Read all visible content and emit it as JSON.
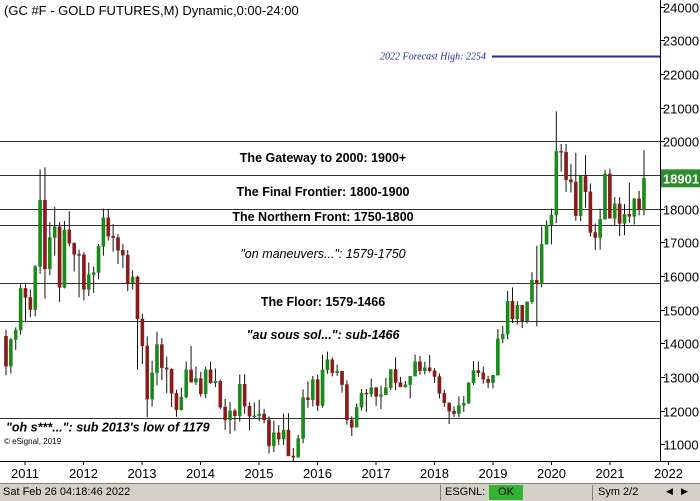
{
  "title": "(GC #F - GOLD FUTURES,M) Dynamic,0:00-24:00",
  "copyright": "© eSignal, 2019",
  "status": {
    "timestamp": "Sat Feb 26 04:18:46 2022",
    "feed": "ESGNL:",
    "feed_status": "OK",
    "symbol": "Sym 2/2"
  },
  "colors": {
    "up": "#1a8a1a",
    "down": "#8b1a1a",
    "forecast": "#1a2aa0",
    "last_price_bg": "#2e8b2e"
  },
  "chart_data": {
    "type": "candlestick",
    "title": "(GC #F - GOLD FUTURES,M) Dynamic,0:00-24:00",
    "interval": "monthly",
    "ylim": [
      10500,
      24200
    ],
    "y_ticks": [
      11000,
      12000,
      13000,
      14000,
      15000,
      16000,
      17000,
      18000,
      19000,
      20000,
      21000,
      22000,
      23000,
      24000
    ],
    "x_ticks": [
      "2011",
      "2012",
      "2013",
      "2014",
      "2015",
      "2016",
      "2017",
      "2018",
      "2019",
      "2020",
      "2021",
      "2022"
    ],
    "last_price": "18901",
    "levels": [
      {
        "value": 20000,
        "label": "The Gateway to 2000:  1900+",
        "label_value": 19500,
        "label_style": "bold"
      },
      {
        "value": 19000,
        "label": "The Final Frontier:  1800-1900",
        "label_value": 18500,
        "label_style": "bold"
      },
      {
        "value": 18000,
        "label": "The Northern Front:  1750-1800",
        "label_value": 17750,
        "label_style": "bold"
      },
      {
        "value": 17500,
        "label": "\"on maneuvers...\":  1579-1750",
        "label_value": 16650,
        "label_style": "italic"
      },
      {
        "value": 15790,
        "label": "The Floor:  1579-1466",
        "label_value": 15230,
        "label_style": "bold"
      },
      {
        "value": 14660,
        "label": "\"au sous sol...\":  sub-1466",
        "label_value": 14250,
        "label_style": "bolditalic"
      },
      {
        "value": 11790,
        "label": "\"oh s***...\": sub 2013's low of 1179",
        "label_value": 11500,
        "label_style": "bolditalic"
      }
    ],
    "forecast": {
      "value": 22540,
      "label": "2022 Forecast High:  2254"
    },
    "candles": [
      [
        1421,
        1440,
        1305,
        1332
      ],
      [
        1332,
        1415,
        1310,
        1411
      ],
      [
        1411,
        1447,
        1380,
        1439
      ],
      [
        1439,
        1575,
        1425,
        1563
      ],
      [
        1563,
        1575,
        1462,
        1536
      ],
      [
        1536,
        1560,
        1478,
        1500
      ],
      [
        1500,
        1632,
        1480,
        1628
      ],
      [
        1628,
        1917,
        1606,
        1825
      ],
      [
        1825,
        1923,
        1532,
        1621
      ],
      [
        1621,
        1760,
        1602,
        1714
      ],
      [
        1714,
        1805,
        1660,
        1746
      ],
      [
        1746,
        1760,
        1523,
        1566
      ],
      [
        1566,
        1763,
        1563,
        1737
      ],
      [
        1737,
        1792,
        1688,
        1697
      ],
      [
        1697,
        1700,
        1613,
        1664
      ],
      [
        1664,
        1678,
        1536,
        1663
      ],
      [
        1663,
        1670,
        1527,
        1560
      ],
      [
        1560,
        1640,
        1540,
        1604
      ],
      [
        1604,
        1628,
        1550,
        1610
      ],
      [
        1610,
        1695,
        1590,
        1688
      ],
      [
        1688,
        1800,
        1660,
        1773
      ],
      [
        1773,
        1797,
        1705,
        1718
      ],
      [
        1718,
        1754,
        1672,
        1714
      ],
      [
        1714,
        1725,
        1636,
        1676
      ],
      [
        1676,
        1695,
        1624,
        1662
      ],
      [
        1662,
        1677,
        1555,
        1579
      ],
      [
        1579,
        1617,
        1560,
        1597
      ],
      [
        1597,
        1600,
        1321,
        1472
      ],
      [
        1472,
        1488,
        1338,
        1392
      ],
      [
        1392,
        1420,
        1180,
        1234
      ],
      [
        1234,
        1348,
        1212,
        1312
      ],
      [
        1312,
        1434,
        1275,
        1396
      ],
      [
        1396,
        1415,
        1290,
        1327
      ],
      [
        1327,
        1360,
        1252,
        1323
      ],
      [
        1323,
        1325,
        1210,
        1251
      ],
      [
        1251,
        1262,
        1182,
        1202
      ],
      [
        1202,
        1268,
        1200,
        1240
      ],
      [
        1240,
        1346,
        1236,
        1321
      ],
      [
        1321,
        1392,
        1310,
        1284
      ],
      [
        1284,
        1331,
        1276,
        1295
      ],
      [
        1295,
        1315,
        1241,
        1250
      ],
      [
        1250,
        1330,
        1238,
        1321
      ],
      [
        1321,
        1345,
        1280,
        1282
      ],
      [
        1282,
        1325,
        1270,
        1287
      ],
      [
        1287,
        1292,
        1204,
        1210
      ],
      [
        1210,
        1235,
        1142,
        1172
      ],
      [
        1172,
        1225,
        1130,
        1199
      ],
      [
        1199,
        1205,
        1140,
        1184
      ],
      [
        1184,
        1307,
        1167,
        1278
      ],
      [
        1278,
        1308,
        1190,
        1213
      ],
      [
        1213,
        1224,
        1141,
        1183
      ],
      [
        1183,
        1224,
        1175,
        1184
      ],
      [
        1184,
        1232,
        1168,
        1190
      ],
      [
        1190,
        1205,
        1162,
        1172
      ],
      [
        1172,
        1183,
        1072,
        1095
      ],
      [
        1095,
        1170,
        1077,
        1134
      ],
      [
        1134,
        1157,
        1098,
        1115
      ],
      [
        1115,
        1191,
        1098,
        1142
      ],
      [
        1142,
        1192,
        1074,
        1065
      ],
      [
        1065,
        1089,
        1046,
        1061
      ],
      [
        1061,
        1128,
        1061,
        1117
      ],
      [
        1117,
        1263,
        1103,
        1238
      ],
      [
        1238,
        1287,
        1208,
        1232
      ],
      [
        1232,
        1303,
        1212,
        1292
      ],
      [
        1292,
        1306,
        1199,
        1215
      ],
      [
        1215,
        1366,
        1209,
        1321
      ],
      [
        1321,
        1375,
        1309,
        1351
      ],
      [
        1351,
        1358,
        1301,
        1312
      ],
      [
        1312,
        1336,
        1303,
        1317
      ],
      [
        1317,
        1318,
        1253,
        1277
      ],
      [
        1277,
        1290,
        1158,
        1172
      ],
      [
        1172,
        1183,
        1124,
        1150
      ],
      [
        1150,
        1221,
        1151,
        1210
      ],
      [
        1210,
        1264,
        1200,
        1252
      ],
      [
        1252,
        1264,
        1196,
        1249
      ],
      [
        1249,
        1295,
        1240,
        1268
      ],
      [
        1268,
        1270,
        1214,
        1242
      ],
      [
        1242,
        1274,
        1204,
        1247
      ],
      [
        1247,
        1297,
        1247,
        1268
      ],
      [
        1268,
        1291,
        1261,
        1322
      ],
      [
        1322,
        1358,
        1260,
        1283
      ],
      [
        1283,
        1300,
        1272,
        1270
      ],
      [
        1270,
        1288,
        1268,
        1277
      ],
      [
        1277,
        1300,
        1236,
        1302
      ],
      [
        1302,
        1366,
        1302,
        1345
      ],
      [
        1345,
        1362,
        1306,
        1318
      ],
      [
        1318,
        1345,
        1307,
        1327
      ],
      [
        1327,
        1365,
        1313,
        1318
      ],
      [
        1318,
        1326,
        1282,
        1301
      ],
      [
        1301,
        1310,
        1236,
        1251
      ],
      [
        1251,
        1262,
        1211,
        1223
      ],
      [
        1223,
        1214,
        1160,
        1198
      ],
      [
        1198,
        1212,
        1180,
        1191
      ],
      [
        1191,
        1242,
        1180,
        1215
      ],
      [
        1215,
        1243,
        1196,
        1222
      ],
      [
        1222,
        1285,
        1220,
        1282
      ],
      [
        1282,
        1347,
        1276,
        1319
      ],
      [
        1319,
        1346,
        1300,
        1312
      ],
      [
        1312,
        1330,
        1280,
        1293
      ],
      [
        1293,
        1303,
        1266,
        1283
      ],
      [
        1283,
        1290,
        1266,
        1305
      ],
      [
        1305,
        1442,
        1305,
        1413
      ],
      [
        1413,
        1451,
        1400,
        1427
      ],
      [
        1427,
        1555,
        1412,
        1525
      ],
      [
        1525,
        1566,
        1460,
        1472
      ],
      [
        1472,
        1525,
        1456,
        1513
      ],
      [
        1513,
        1479,
        1445,
        1466
      ],
      [
        1466,
        1520,
        1459,
        1523
      ],
      [
        1523,
        1611,
        1517,
        1587
      ],
      [
        1587,
        1690,
        1450,
        1577
      ],
      [
        1577,
        1747,
        1566,
        1694
      ],
      [
        1694,
        1765,
        1696,
        1751
      ],
      [
        1751,
        1800,
        1694,
        1781
      ],
      [
        1781,
        2089,
        1757,
        1970
      ],
      [
        1970,
        1992,
        1910,
        1968
      ],
      [
        1968,
        1992,
        1850,
        1886
      ],
      [
        1886,
        1933,
        1848,
        1879
      ],
      [
        1879,
        1966,
        1764,
        1779
      ],
      [
        1779,
        1898,
        1763,
        1896
      ],
      [
        1896,
        1959,
        1803,
        1850
      ],
      [
        1850,
        1875,
        1717,
        1729
      ],
      [
        1729,
        1756,
        1677,
        1714
      ],
      [
        1714,
        1800,
        1678,
        1768
      ],
      [
        1768,
        1916,
        1770,
        1903
      ],
      [
        1903,
        1919,
        1775,
        1771
      ],
      [
        1771,
        1834,
        1750,
        1814
      ],
      [
        1814,
        1834,
        1718,
        1756
      ],
      [
        1756,
        1814,
        1721,
        1783
      ],
      [
        1783,
        1877,
        1758,
        1777
      ],
      [
        1777,
        1832,
        1753,
        1829
      ],
      [
        1829,
        1853,
        1780,
        1796
      ],
      [
        1796,
        1974,
        1780,
        1890
      ]
    ]
  }
}
